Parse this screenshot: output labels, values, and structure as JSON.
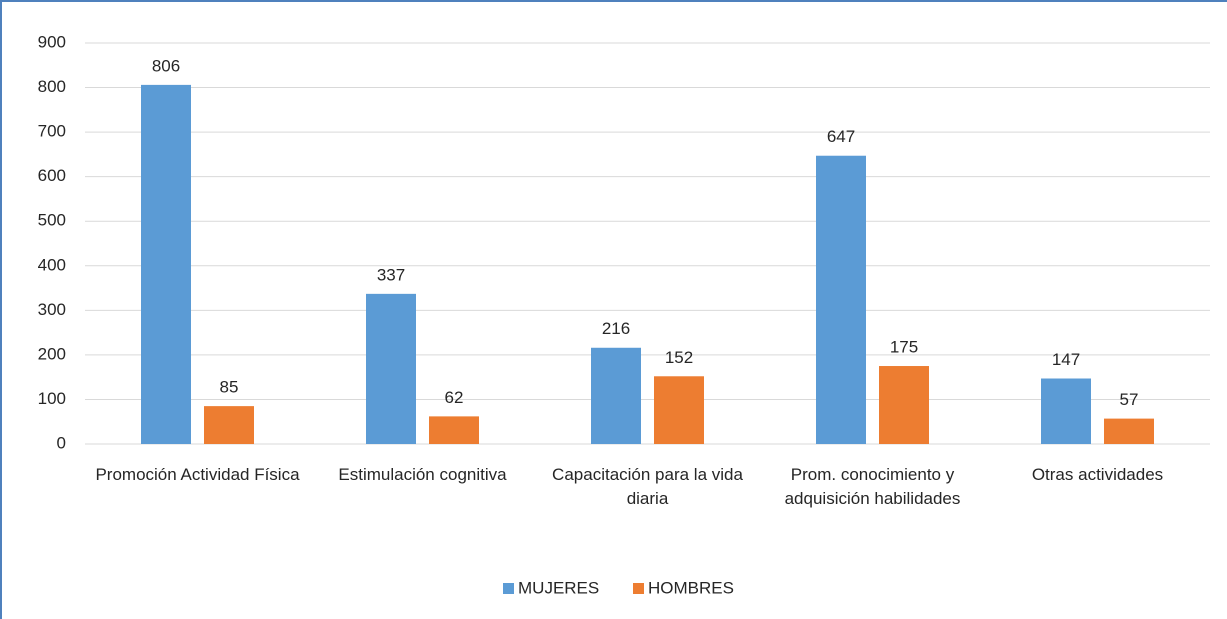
{
  "chart_data": {
    "type": "bar",
    "categories": [
      "Promoción Actividad Física",
      "Estimulación cognitiva",
      "Capacitación para la vida diaria",
      "Prom. conocimiento y adquisición habilidades",
      "Otras actividades"
    ],
    "series": [
      {
        "name": "MUJERES",
        "color": "#5b9bd5",
        "values": [
          806,
          337,
          216,
          647,
          147
        ]
      },
      {
        "name": "HOMBRES",
        "color": "#ed7d31",
        "values": [
          85,
          62,
          152,
          175,
          57
        ]
      }
    ],
    "ylim": [
      0,
      900
    ],
    "yticks": [
      0,
      100,
      200,
      300,
      400,
      500,
      600,
      700,
      800,
      900
    ],
    "grid": true,
    "legend": "bottom"
  }
}
